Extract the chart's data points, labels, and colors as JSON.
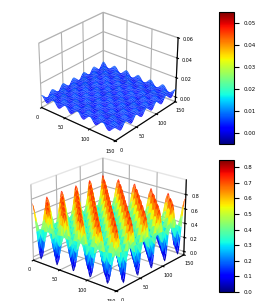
{
  "figsize": [
    2.74,
    3.01
  ],
  "dpi": 100,
  "background_color": "#ffffff",
  "top_plot": {
    "cmap": "jet",
    "amplitude": 0.003,
    "base": 0.005,
    "nx": 80,
    "ny": 80,
    "periods_x": 6,
    "periods_y": 6,
    "xlim": [
      0,
      150
    ],
    "ylim": [
      0,
      150
    ],
    "zlim": [
      -0.005,
      0.06
    ],
    "elev": 28,
    "azim": -50,
    "vmin": -0.005,
    "vmax": 0.055,
    "colorbar_ticks": [
      0.0,
      0.01,
      0.02,
      0.03,
      0.04,
      0.05
    ],
    "colorbar_range": [
      -0.005,
      0.055
    ]
  },
  "bottom_plot": {
    "cmap": "jet",
    "amplitude": 0.38,
    "base": 0.38,
    "nx": 80,
    "ny": 80,
    "periods_x": 5,
    "periods_y": 5,
    "xlim": [
      0,
      150
    ],
    "ylim": [
      0,
      150
    ],
    "zlim": [
      -0.05,
      1.0
    ],
    "elev": 22,
    "azim": -50,
    "vmin": 0.0,
    "vmax": 0.85,
    "colorbar_ticks": [
      0.0,
      0.1,
      0.2,
      0.3,
      0.4,
      0.5,
      0.6,
      0.7,
      0.8
    ],
    "colorbar_range": [
      0.0,
      0.85
    ]
  }
}
